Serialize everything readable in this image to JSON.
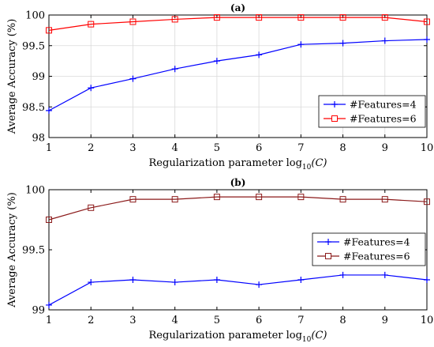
{
  "chart_data": [
    {
      "type": "line",
      "title": "(a)",
      "xlabel": "Regularization parameter log",
      "xlabel_sub": "10",
      "xlabel_suffix": "(C)",
      "ylabel": "Average Accuracy (%)",
      "x": [
        1,
        2,
        3,
        4,
        5,
        6,
        7,
        8,
        9,
        10
      ],
      "xlim": [
        1,
        10
      ],
      "ylim": [
        98,
        100
      ],
      "xticks": [
        "1",
        "2",
        "3",
        "4",
        "5",
        "6",
        "7",
        "8",
        "9",
        "10"
      ],
      "yticks": [
        {
          "value": 98,
          "label": "98"
        },
        {
          "value": 98.5,
          "label": "98.5"
        },
        {
          "value": 99,
          "label": "99"
        },
        {
          "value": 99.5,
          "label": "99.5"
        },
        {
          "value": 100,
          "label": "100"
        }
      ],
      "grid": true,
      "legend": "bottom-right",
      "series": [
        {
          "name": "#Features=4",
          "color": "#0000ff",
          "marker": "plus",
          "values": [
            98.44,
            98.81,
            98.96,
            99.12,
            99.25,
            99.35,
            99.52,
            99.54,
            99.58,
            99.6
          ]
        },
        {
          "name": "#Features=6",
          "color": "#ff0000",
          "marker": "square",
          "values": [
            99.75,
            99.85,
            99.89,
            99.93,
            99.96,
            99.96,
            99.96,
            99.96,
            99.96,
            99.89
          ]
        }
      ]
    },
    {
      "type": "line",
      "title": "(b)",
      "xlabel": "Regularization parameter log",
      "xlabel_sub": "10",
      "xlabel_suffix": "(C)",
      "ylabel": "Average Accuracy (%)",
      "x": [
        1,
        2,
        3,
        4,
        5,
        6,
        7,
        8,
        9,
        10
      ],
      "xlim": [
        1,
        10
      ],
      "ylim": [
        99,
        100
      ],
      "xticks": [
        "1",
        "2",
        "3",
        "4",
        "5",
        "6",
        "7",
        "8",
        "9",
        "10"
      ],
      "yticks": [
        {
          "value": 99,
          "label": "99"
        },
        {
          "value": 99.5,
          "label": "99.5"
        },
        {
          "value": 100,
          "label": "100"
        }
      ],
      "grid": false,
      "legend": "right",
      "series": [
        {
          "name": "#Features=4",
          "color": "#0000ff",
          "marker": "plus",
          "values": [
            99.04,
            99.23,
            99.25,
            99.23,
            99.25,
            99.21,
            99.25,
            99.29,
            99.29,
            99.25
          ]
        },
        {
          "name": "#Features=6",
          "color": "#8b1a1a",
          "marker": "square",
          "values": [
            99.75,
            99.85,
            99.92,
            99.92,
            99.94,
            99.94,
            99.94,
            99.92,
            99.92,
            99.9
          ]
        }
      ]
    }
  ]
}
